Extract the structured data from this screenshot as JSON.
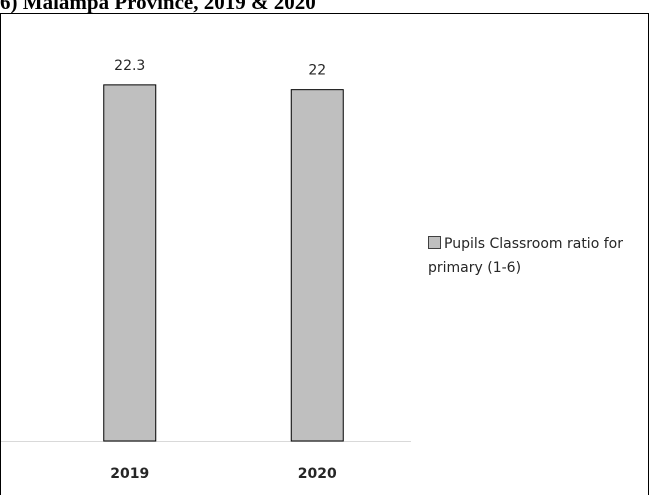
{
  "page_title": "6) Malampa Province, 2019 & 2020",
  "chart_data": {
    "type": "bar",
    "categories": [
      "2019",
      "2020"
    ],
    "series": [
      {
        "name": "Pupils Classroom ratio for primary (1-6)",
        "values": [
          22.3,
          22
        ]
      }
    ],
    "ylim": [
      0,
      26.8
    ],
    "grid": false,
    "legend": "right",
    "colors": {
      "bar_fill": "#bfbfbf",
      "bar_stroke": "#000000",
      "axis": "#d9d9d9",
      "text": "#262626"
    }
  }
}
